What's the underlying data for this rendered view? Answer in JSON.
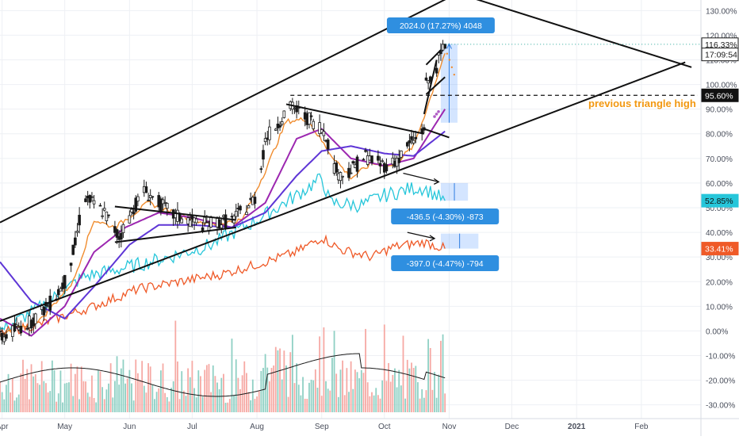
{
  "chart_data": {
    "type": "candlestick",
    "title": "",
    "xlabel": "",
    "ylabel": "",
    "y_unit": "%",
    "ylim": [
      -33,
      133
    ],
    "y_ticks": [
      -30,
      -20,
      -10,
      0,
      10,
      20,
      30,
      40,
      50,
      60,
      70,
      80,
      90,
      100,
      110,
      120,
      130
    ],
    "y_tick_labels": [
      "-30.00%",
      "-20.00%",
      "-10.00%",
      "0.00%",
      "10.00%",
      "20.00%",
      "30.00%",
      "40.00%",
      "50.00%",
      "60.00%",
      "70.00%",
      "80.00%",
      "90.00%",
      "100.00%",
      "110.00%",
      "120.00%",
      "130.00%"
    ],
    "x_range": [
      "2020-03-31",
      "2021-02-28"
    ],
    "x_ticks": [
      {
        "date": "2020-04-01",
        "label": "Apr"
      },
      {
        "date": "2020-05-01",
        "label": "May"
      },
      {
        "date": "2020-06-01",
        "label": "Jun"
      },
      {
        "date": "2020-07-01",
        "label": "Jul"
      },
      {
        "date": "2020-08-01",
        "label": "Aug"
      },
      {
        "date": "2020-09-01",
        "label": "Sep"
      },
      {
        "date": "2020-10-01",
        "label": "Oct"
      },
      {
        "date": "2020-11-01",
        "label": "Nov"
      },
      {
        "date": "2020-12-01",
        "label": "Dec"
      },
      {
        "date": "2021-01-01",
        "label": "2021"
      },
      {
        "date": "2021-02-01",
        "label": "Feb"
      }
    ],
    "main_series_anchors": [
      [
        "2020-03-31",
        -3
      ],
      [
        "2020-04-15",
        4
      ],
      [
        "2020-04-25",
        12
      ],
      [
        "2020-05-01",
        20
      ],
      [
        "2020-05-06",
        35
      ],
      [
        "2020-05-10",
        55
      ],
      [
        "2020-05-14",
        52
      ],
      [
        "2020-05-20",
        48
      ],
      [
        "2020-05-27",
        38
      ],
      [
        "2020-06-03",
        50
      ],
      [
        "2020-06-08",
        57
      ],
      [
        "2020-06-15",
        52
      ],
      [
        "2020-06-22",
        47
      ],
      [
        "2020-06-29",
        45
      ],
      [
        "2020-07-06",
        43
      ],
      [
        "2020-07-13",
        44
      ],
      [
        "2020-07-20",
        45
      ],
      [
        "2020-07-27",
        50
      ],
      [
        "2020-08-01",
        55
      ],
      [
        "2020-08-05",
        78
      ],
      [
        "2020-08-10",
        83
      ],
      [
        "2020-08-14",
        88
      ],
      [
        "2020-08-18",
        91
      ],
      [
        "2020-08-22",
        88
      ],
      [
        "2020-08-26",
        86
      ],
      [
        "2020-08-30",
        84
      ],
      [
        "2020-09-03",
        80
      ],
      [
        "2020-09-06",
        68
      ],
      [
        "2020-09-10",
        63
      ],
      [
        "2020-09-16",
        66
      ],
      [
        "2020-09-22",
        71
      ],
      [
        "2020-09-28",
        68
      ],
      [
        "2020-10-03",
        67
      ],
      [
        "2020-10-08",
        70
      ],
      [
        "2020-10-13",
        76
      ],
      [
        "2020-10-18",
        79
      ],
      [
        "2020-10-20",
        83
      ],
      [
        "2020-10-21",
        100
      ],
      [
        "2020-10-23",
        102
      ],
      [
        "2020-10-25",
        105
      ],
      [
        "2020-10-27",
        110
      ],
      [
        "2020-10-29",
        114
      ],
      [
        "2020-10-30",
        116.33
      ]
    ],
    "moving_averages": [
      {
        "color": "#f08c2e",
        "points": [
          [
            "2020-03-31",
            -2
          ],
          [
            "2020-04-20",
            5
          ],
          [
            "2020-05-05",
            20
          ],
          [
            "2020-05-15",
            45
          ],
          [
            "2020-05-25",
            42
          ],
          [
            "2020-06-10",
            52
          ],
          [
            "2020-06-25",
            47
          ],
          [
            "2020-07-10",
            43
          ],
          [
            "2020-07-25",
            45
          ],
          [
            "2020-08-05",
            65
          ],
          [
            "2020-08-15",
            85
          ],
          [
            "2020-08-25",
            86
          ],
          [
            "2020-09-05",
            72
          ],
          [
            "2020-09-15",
            62
          ],
          [
            "2020-09-25",
            68
          ],
          [
            "2020-10-05",
            67
          ],
          [
            "2020-10-15",
            75
          ],
          [
            "2020-10-22",
            92
          ],
          [
            "2020-10-30",
            113
          ]
        ]
      },
      {
        "color": "#9c27b0",
        "points": [
          [
            "2020-03-31",
            5
          ],
          [
            "2020-04-15",
            -2
          ],
          [
            "2020-05-01",
            10
          ],
          [
            "2020-05-15",
            32
          ],
          [
            "2020-05-30",
            42
          ],
          [
            "2020-06-15",
            48
          ],
          [
            "2020-07-01",
            46
          ],
          [
            "2020-07-20",
            42
          ],
          [
            "2020-08-05",
            52
          ],
          [
            "2020-08-20",
            78
          ],
          [
            "2020-09-01",
            82
          ],
          [
            "2020-09-15",
            70
          ],
          [
            "2020-10-01",
            67
          ],
          [
            "2020-10-15",
            70
          ],
          [
            "2020-10-30",
            90
          ]
        ]
      },
      {
        "color": "#5e35d6",
        "points": [
          [
            "2020-03-31",
            28
          ],
          [
            "2020-04-15",
            12
          ],
          [
            "2020-05-01",
            5
          ],
          [
            "2020-05-15",
            18
          ],
          [
            "2020-06-01",
            35
          ],
          [
            "2020-06-15",
            43
          ],
          [
            "2020-07-01",
            43
          ],
          [
            "2020-07-20",
            42
          ],
          [
            "2020-08-05",
            48
          ],
          [
            "2020-08-20",
            63
          ],
          [
            "2020-09-01",
            73
          ],
          [
            "2020-09-15",
            75
          ],
          [
            "2020-10-01",
            72
          ],
          [
            "2020-10-15",
            71
          ],
          [
            "2020-10-30",
            81
          ]
        ]
      }
    ],
    "comparison_series": [
      {
        "color": "#26c6da",
        "last_value": 52.85,
        "points": [
          [
            "2020-03-31",
            0
          ],
          [
            "2020-04-20",
            10
          ],
          [
            "2020-05-10",
            22
          ],
          [
            "2020-06-01",
            26
          ],
          [
            "2020-06-20",
            30
          ],
          [
            "2020-07-10",
            35
          ],
          [
            "2020-08-01",
            45
          ],
          [
            "2020-08-20",
            55
          ],
          [
            "2020-09-01",
            62
          ],
          [
            "2020-09-05",
            52
          ],
          [
            "2020-09-20",
            51
          ],
          [
            "2020-10-01",
            55
          ],
          [
            "2020-10-15",
            58
          ],
          [
            "2020-10-20",
            58
          ],
          [
            "2020-10-30",
            52.85
          ]
        ]
      },
      {
        "color": "#ef5a28",
        "last_value": 33.41,
        "points": [
          [
            "2020-03-31",
            -1
          ],
          [
            "2020-04-20",
            3
          ],
          [
            "2020-05-15",
            10
          ],
          [
            "2020-06-05",
            17
          ],
          [
            "2020-06-25",
            20
          ],
          [
            "2020-07-15",
            23
          ],
          [
            "2020-08-01",
            27
          ],
          [
            "2020-08-20",
            32
          ],
          [
            "2020-09-01",
            38
          ],
          [
            "2020-09-10",
            33
          ],
          [
            "2020-09-25",
            30
          ],
          [
            "2020-10-05",
            34
          ],
          [
            "2020-10-20",
            36
          ],
          [
            "2020-10-30",
            33.41
          ]
        ]
      }
    ],
    "volume": {
      "baseline_pct": -33,
      "note": "volume histogram shown in lower pane (values not labeled)",
      "ma_color": "#1a1a1a"
    },
    "annotations": {
      "price_range_label": "2024.0 (17.27%) 4048",
      "range_label_cyan": "-436.5 (-4.30%) -873",
      "range_label_red": "-397.0 (-4.47%) -794",
      "text_note": "previous triangle high",
      "triangle_high_level": 95.6
    },
    "price_tags": [
      {
        "label": "116.33%",
        "value": 116.33,
        "bg": "#ffffff",
        "fg": "#1a1a1a",
        "border": "#1a1a1a"
      },
      {
        "label": "17:09:54",
        "value": 112.2,
        "bg": "#ffffff",
        "fg": "#1a1a1a",
        "border": "#1a1a1a"
      },
      {
        "label": "95.60%",
        "value": 95.6,
        "bg": "#111111",
        "fg": "#ffffff",
        "border": "#111111"
      },
      {
        "label": "52.85%",
        "value": 52.85,
        "bg": "#26c6da",
        "fg": "#111111",
        "border": "#26c6da"
      },
      {
        "label": "33.41%",
        "value": 33.41,
        "bg": "#ef5a28",
        "fg": "#ffffff",
        "border": "#ef5a28"
      }
    ],
    "colors": {
      "up": "#26a69a",
      "down": "#ef5350",
      "candle_body": "#1a1a1a",
      "accent_orange": "#f29811",
      "label_blue": "#2f8fe0"
    },
    "grid": true
  }
}
